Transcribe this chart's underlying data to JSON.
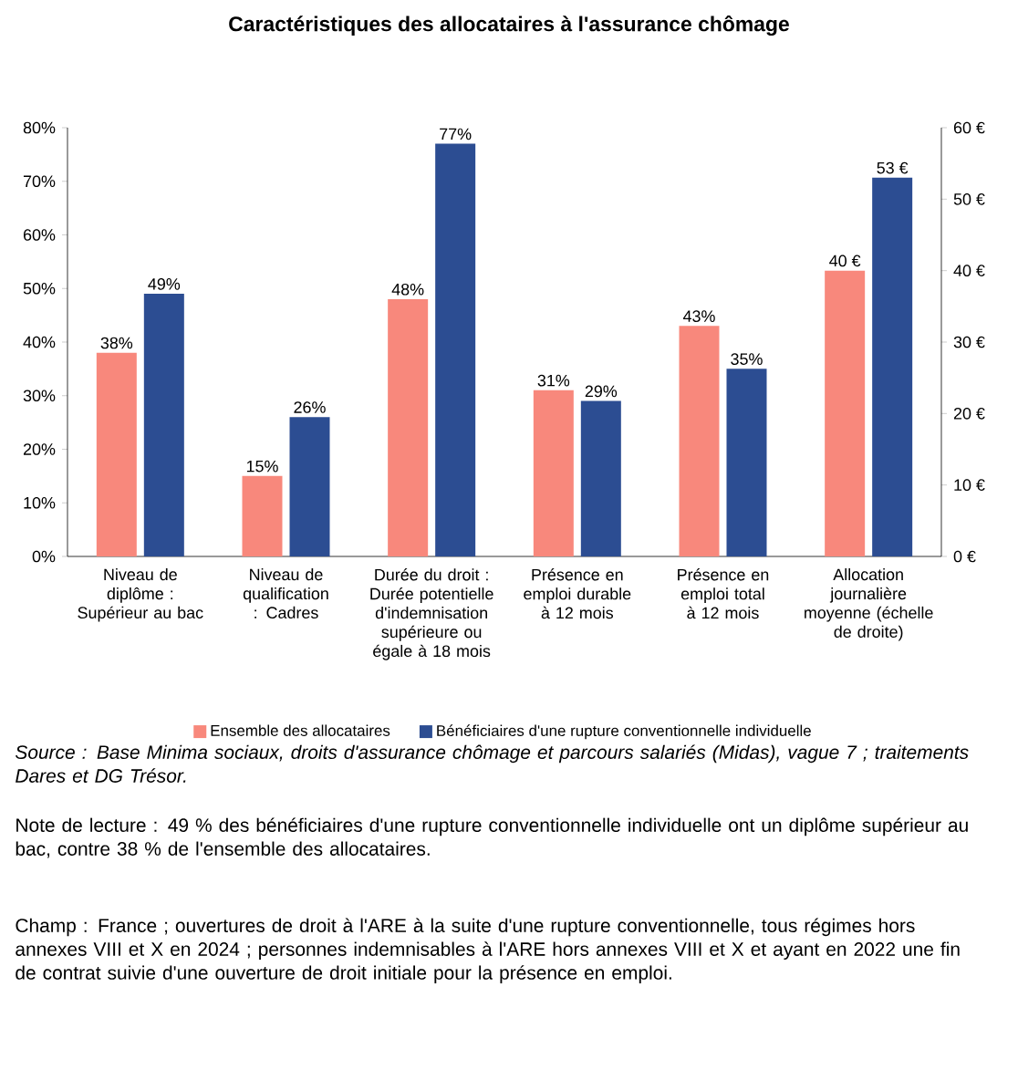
{
  "chart_data": {
    "type": "bar",
    "title": "Caractéristiques des allocataires à l'assurance chômage",
    "categories": [
      "Niveau de diplôme : Supérieur au bac",
      "Niveau de qualification : Cadres",
      "Durée du droit : Durée potentielle d'indemnisation supérieure ou égale à 18 mois",
      "Présence en emploi durable à 12 mois",
      "Présence en emploi total à 12 mois",
      "Allocation journalière moyenne (échelle de droite)"
    ],
    "series": [
      {
        "name": "Ensemble des allocataires",
        "color": "#f8887c",
        "values": [
          38,
          15,
          48,
          31,
          43,
          null
        ],
        "value_labels": [
          "38%",
          "15%",
          "48%",
          "31%",
          "43%",
          null
        ]
      },
      {
        "name": "Bénéficiaires d'une rupture conventionnelle individuelle",
        "color": "#2c4d92",
        "values": [
          49,
          26,
          77,
          29,
          35,
          null
        ],
        "value_labels": [
          "49%",
          "26%",
          "77%",
          "29%",
          "35%",
          null
        ]
      },
      {
        "color": "#f8887c",
        "axis": "y2",
        "values": [
          null,
          null,
          null,
          null,
          null,
          40
        ],
        "value_labels": [
          null,
          null,
          null,
          null,
          null,
          "40 €"
        ]
      },
      {
        "color": "#2c4d92",
        "axis": "y2",
        "values": [
          null,
          null,
          null,
          null,
          null,
          53
        ],
        "value_labels": [
          null,
          null,
          null,
          null,
          null,
          "53 €"
        ]
      }
    ],
    "ylim": [
      0,
      80
    ],
    "yticks": [
      {
        "value": 0,
        "label": "0%"
      },
      {
        "value": 10,
        "label": "10%"
      },
      {
        "value": 20,
        "label": "20%"
      },
      {
        "value": 30,
        "label": "30%"
      },
      {
        "value": 40,
        "label": "40%"
      },
      {
        "value": 50,
        "label": "50%"
      },
      {
        "value": 60,
        "label": "60%"
      },
      {
        "value": 70,
        "label": "70%"
      },
      {
        "value": 80,
        "label": "80%"
      }
    ],
    "y2lim": [
      0,
      60
    ],
    "y2ticks": [
      {
        "value": 0,
        "label": "0 €"
      },
      {
        "value": 10,
        "label": "10 €"
      },
      {
        "value": 20,
        "label": "20 €"
      },
      {
        "value": 30,
        "label": "30 €"
      },
      {
        "value": 40,
        "label": "40 €"
      },
      {
        "value": 50,
        "label": "50 €"
      },
      {
        "value": 60,
        "label": "60 €"
      }
    ],
    "legend": "bottom",
    "annotations": [
      "Source : Base Minima sociaux, droits d'assurance chômage et parcours salariés (Midas), vague 7 ; traitements Dares et DG Trésor.",
      "Note de lecture : 49 % des bénéficiaires d'une rupture conventionnelle individuelle ont un diplôme supérieur au bac, contre 38 % de l'ensemble des allocataires.",
      "Champ : France ; ouvertures de droit à l'ARE à la suite d'une rupture conventionnelle, tous régimes hors annexes VIII et X en 2024 ; personnes indemnisables à l'ARE hors annexes VIII et X et ayant en 2022 une fin de contrat suivie d'une ouverture de droit initiale pour la présence en emploi."
    ]
  }
}
